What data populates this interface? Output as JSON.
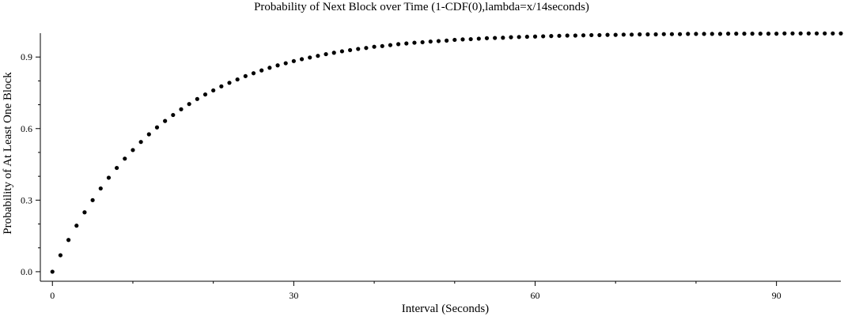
{
  "chart_data": {
    "type": "scatter",
    "title": "Probability of Next Block over Time (1-CDF(0),lambda=x/14seconds)",
    "xlabel": "Interval (Seconds)",
    "ylabel": "Probability of At Least One Block",
    "xlim": [
      -1.5,
      98
    ],
    "ylim": [
      -0.04,
      1.0
    ],
    "x_ticks": [
      0,
      30,
      60,
      90
    ],
    "x_minor_ticks": [
      10,
      20,
      40,
      50,
      70,
      80
    ],
    "y_ticks": [
      0.0,
      0.3,
      0.6,
      0.9
    ],
    "y_tick_labels": [
      "0.0",
      "0.3",
      "0.6",
      "0.9"
    ],
    "y_minor_ticks": [
      0.1,
      0.2,
      0.4,
      0.5,
      0.7,
      0.8
    ],
    "grid": false,
    "legend": "none",
    "marker_color": "#000000",
    "x": [
      0,
      1,
      2,
      3,
      4,
      5,
      6,
      7,
      8,
      9,
      10,
      11,
      12,
      13,
      14,
      15,
      16,
      17,
      18,
      19,
      20,
      21,
      22,
      23,
      24,
      25,
      26,
      27,
      28,
      29,
      30,
      31,
      32,
      33,
      34,
      35,
      36,
      37,
      38,
      39,
      40,
      41,
      42,
      43,
      44,
      45,
      46,
      47,
      48,
      49,
      50,
      51,
      52,
      53,
      54,
      55,
      56,
      57,
      58,
      59,
      60,
      61,
      62,
      63,
      64,
      65,
      66,
      67,
      68,
      69,
      70,
      71,
      72,
      73,
      74,
      75,
      76,
      77,
      78,
      79,
      80,
      81,
      82,
      83,
      84,
      85,
      86,
      87,
      88,
      89,
      90,
      91,
      92,
      93,
      94,
      95,
      96,
      97,
      98
    ],
    "y": [
      0.0,
      0.069,
      0.133,
      0.193,
      0.249,
      0.3,
      0.349,
      0.394,
      0.435,
      0.474,
      0.51,
      0.544,
      0.576,
      0.605,
      0.632,
      0.657,
      0.681,
      0.703,
      0.724,
      0.743,
      0.76,
      0.777,
      0.792,
      0.806,
      0.82,
      0.832,
      0.844,
      0.855,
      0.865,
      0.874,
      0.883,
      0.891,
      0.898,
      0.905,
      0.912,
      0.918,
      0.924,
      0.929,
      0.934,
      0.938,
      0.943,
      0.946,
      0.95,
      0.954,
      0.957,
      0.96,
      0.962,
      0.965,
      0.967,
      0.969,
      0.972,
      0.974,
      0.975,
      0.977,
      0.979,
      0.98,
      0.981,
      0.983,
      0.984,
      0.985,
      0.986,
      0.987,
      0.988,
      0.989,
      0.99,
      0.99,
      0.991,
      0.992,
      0.992,
      0.993,
      0.993,
      0.994,
      0.994,
      0.995,
      0.995,
      0.995,
      0.996,
      0.996,
      0.996,
      0.997,
      0.997,
      0.997,
      0.997,
      0.997,
      0.998,
      0.998,
      0.998,
      0.998,
      0.998,
      0.998,
      0.998,
      0.999,
      0.999,
      0.999,
      0.999,
      0.999,
      0.999,
      0.999,
      0.999
    ]
  }
}
